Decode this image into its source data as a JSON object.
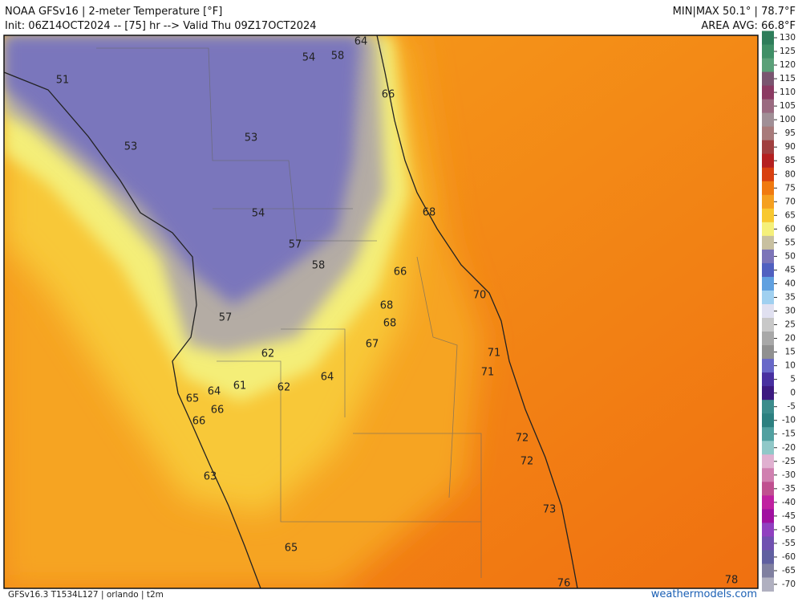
{
  "header": {
    "title": "NOAA GFSv16 | 2-meter Temperature [°F]",
    "init": "Init: 06Z14OCT2024 -- [75] hr --> Valid Thu 09Z17OCT2024",
    "minmax": "MIN|MAX 50.1° | 78.7°F",
    "average": "AREA AVG: 66.8°F"
  },
  "map": {
    "labels": [
      "51",
      "53",
      "54",
      "58",
      "64",
      "66",
      "53",
      "54",
      "68",
      "57",
      "58",
      "66",
      "70",
      "68",
      "68",
      "57",
      "67",
      "62",
      "71",
      "71",
      "64",
      "61",
      "62",
      "64",
      "65",
      "66",
      "66",
      "72",
      "72",
      "63",
      "73",
      "65",
      "76",
      "78"
    ]
  },
  "colorbar": {
    "ticks": [
      130,
      125,
      120,
      115,
      110,
      105,
      100,
      95,
      90,
      85,
      80,
      75,
      70,
      65,
      60,
      55,
      50,
      45,
      40,
      35,
      30,
      25,
      20,
      15,
      10,
      5,
      0,
      -5,
      -10,
      -15,
      -20,
      -25,
      -30,
      -35,
      -40,
      -45,
      -50,
      -55,
      -60,
      -65,
      -70
    ]
  },
  "footer": {
    "model": "GFSv16.3 T1534L127 | orlando | t2m",
    "site": "weathermodels.com"
  }
}
